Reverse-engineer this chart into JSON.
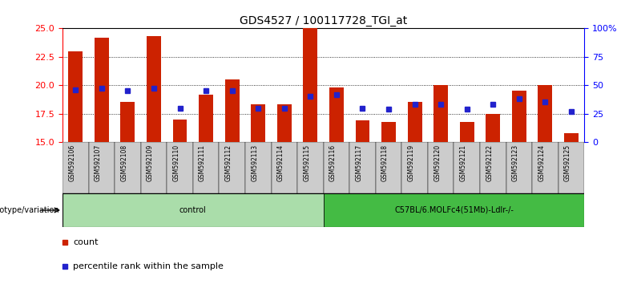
{
  "title": "GDS4527 / 100117728_TGI_at",
  "samples": [
    "GSM592106",
    "GSM592107",
    "GSM592108",
    "GSM592109",
    "GSM592110",
    "GSM592111",
    "GSM592112",
    "GSM592113",
    "GSM592114",
    "GSM592115",
    "GSM592116",
    "GSM592117",
    "GSM592118",
    "GSM592119",
    "GSM592120",
    "GSM592121",
    "GSM592122",
    "GSM592123",
    "GSM592124",
    "GSM592125"
  ],
  "counts": [
    23.0,
    24.2,
    18.5,
    24.3,
    17.0,
    19.2,
    20.5,
    18.3,
    18.3,
    25.0,
    19.8,
    16.9,
    16.8,
    18.5,
    20.0,
    16.8,
    17.5,
    19.5,
    20.0,
    15.8
  ],
  "percentile_ranks": [
    46,
    47,
    45,
    47,
    30,
    45,
    45,
    30,
    30,
    40,
    42,
    30,
    29,
    33,
    33,
    29,
    33,
    38,
    35,
    27
  ],
  "groups": [
    {
      "label": "control",
      "start": 0,
      "end": 10,
      "color": "#aaddaa"
    },
    {
      "label": "C57BL/6.MOLFc4(51Mb)-Ldlr-/-",
      "start": 10,
      "end": 20,
      "color": "#44bb44"
    }
  ],
  "ylim_left": [
    15,
    25
  ],
  "ylim_right": [
    0,
    100
  ],
  "yticks_left": [
    15,
    17.5,
    20,
    22.5,
    25
  ],
  "yticks_right": [
    0,
    25,
    50,
    75,
    100
  ],
  "ytick_labels_right": [
    "0",
    "25",
    "50",
    "75",
    "100%"
  ],
  "bar_color": "#CC2200",
  "marker_color": "#2222CC",
  "baseline": 15,
  "plot_bg_color": "#ffffff",
  "grid_color": "#000000",
  "tick_bg_color": "#cccccc",
  "legend_count_label": "count",
  "legend_percentile_label": "percentile rank within the sample"
}
